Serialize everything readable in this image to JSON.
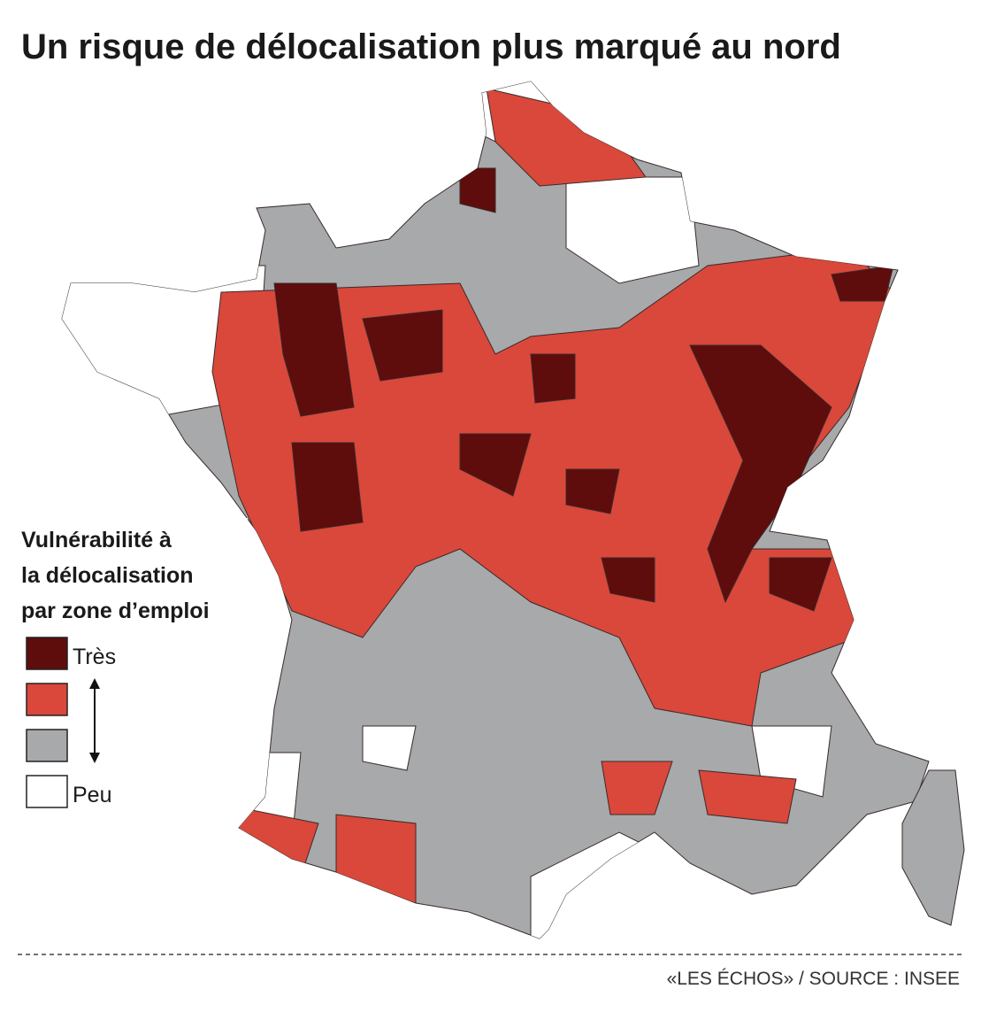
{
  "title": "Un risque de délocalisation plus marqué au nord",
  "legend": {
    "title_lines": [
      "Vulnérabilité à",
      "la délocalisation",
      "par zone d’emploi"
    ],
    "items": [
      {
        "color": "#5e0c0c",
        "label": "Très"
      },
      {
        "color": "#d9483a"
      },
      {
        "color": "#a7a9ab"
      },
      {
        "color": "#ffffff",
        "label": "Peu"
      }
    ]
  },
  "source": "«LES ÉCHOS» / SOURCE : INSEE"
}
